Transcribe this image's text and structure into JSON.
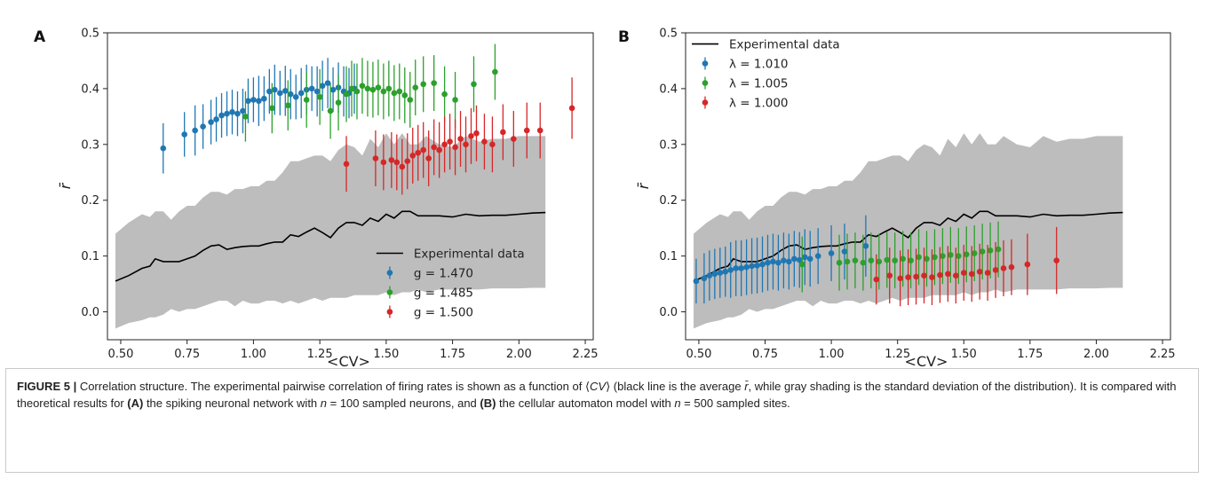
{
  "chart_data": [
    {
      "panel_label": "A",
      "type": "line+errorbar",
      "xlabel": "<CV>",
      "ylabel": "r̄",
      "xlim": [
        0.45,
        2.28
      ],
      "ylim": [
        -0.05,
        0.5
      ],
      "xticks": [
        "0.50",
        "0.75",
        "1.00",
        "1.25",
        "1.50",
        "1.75",
        "2.00",
        "2.25"
      ],
      "yticks": [
        "0.0",
        "0.1",
        "0.2",
        "0.3",
        "0.4",
        "0.5"
      ],
      "legend_position": "lower right",
      "experimental": {
        "name": "Experimental data",
        "x": [
          0.48,
          0.53,
          0.58,
          0.61,
          0.63,
          0.66,
          0.69,
          0.72,
          0.75,
          0.78,
          0.81,
          0.84,
          0.87,
          0.9,
          0.93,
          0.96,
          0.99,
          1.02,
          1.05,
          1.08,
          1.11,
          1.14,
          1.17,
          1.2,
          1.23,
          1.26,
          1.29,
          1.32,
          1.35,
          1.38,
          1.41,
          1.44,
          1.47,
          1.5,
          1.53,
          1.56,
          1.59,
          1.62,
          1.65,
          1.7,
          1.75,
          1.8,
          1.85,
          1.9,
          1.95,
          2.0,
          2.05,
          2.1
        ],
        "mean": [
          0.055,
          0.065,
          0.078,
          0.082,
          0.095,
          0.09,
          0.09,
          0.09,
          0.095,
          0.1,
          0.11,
          0.118,
          0.12,
          0.112,
          0.115,
          0.117,
          0.118,
          0.118,
          0.122,
          0.125,
          0.125,
          0.138,
          0.135,
          0.143,
          0.15,
          0.142,
          0.133,
          0.15,
          0.16,
          0.16,
          0.155,
          0.168,
          0.162,
          0.175,
          0.168,
          0.18,
          0.18,
          0.172,
          0.172,
          0.172,
          0.17,
          0.175,
          0.172,
          0.173,
          0.173,
          0.175,
          0.177,
          0.178
        ],
        "upper": [
          0.14,
          0.16,
          0.175,
          0.17,
          0.18,
          0.18,
          0.165,
          0.18,
          0.19,
          0.19,
          0.205,
          0.215,
          0.215,
          0.21,
          0.22,
          0.22,
          0.225,
          0.225,
          0.235,
          0.235,
          0.25,
          0.27,
          0.27,
          0.275,
          0.28,
          0.28,
          0.27,
          0.29,
          0.3,
          0.295,
          0.28,
          0.31,
          0.295,
          0.32,
          0.3,
          0.32,
          0.3,
          0.3,
          0.315,
          0.3,
          0.295,
          0.315,
          0.305,
          0.31,
          0.31,
          0.315,
          0.315,
          0.315
        ],
        "lower": [
          -0.03,
          -0.02,
          -0.015,
          -0.01,
          -0.01,
          -0.005,
          0.005,
          0.0,
          0.005,
          0.005,
          0.01,
          0.015,
          0.02,
          0.02,
          0.01,
          0.02,
          0.015,
          0.015,
          0.02,
          0.02,
          0.015,
          0.02,
          0.015,
          0.02,
          0.025,
          0.02,
          0.025,
          0.025,
          0.025,
          0.03,
          0.03,
          0.03,
          0.03,
          0.035,
          0.03,
          0.035,
          0.035,
          0.04,
          0.035,
          0.04,
          0.04,
          0.04,
          0.04,
          0.042,
          0.042,
          0.042,
          0.043,
          0.043
        ]
      },
      "series": [
        {
          "name": "g = 1.470",
          "color": "#1f77b4",
          "x": [
            0.66,
            0.74,
            0.78,
            0.81,
            0.84,
            0.86,
            0.88,
            0.9,
            0.92,
            0.94,
            0.96,
            0.98,
            1.0,
            1.02,
            1.04,
            1.06,
            1.08,
            1.1,
            1.12,
            1.14,
            1.16,
            1.18,
            1.2,
            1.22,
            1.24,
            1.26,
            1.28,
            1.3,
            1.32,
            1.34,
            1.36,
            1.38
          ],
          "y": [
            0.293,
            0.318,
            0.325,
            0.332,
            0.34,
            0.345,
            0.352,
            0.355,
            0.358,
            0.355,
            0.36,
            0.378,
            0.38,
            0.378,
            0.382,
            0.395,
            0.398,
            0.392,
            0.396,
            0.39,
            0.385,
            0.392,
            0.398,
            0.4,
            0.395,
            0.405,
            0.41,
            0.398,
            0.402,
            0.395,
            0.392,
            0.4
          ],
          "err": [
            0.045,
            0.04,
            0.045,
            0.04,
            0.04,
            0.04,
            0.04,
            0.04,
            0.04,
            0.04,
            0.04,
            0.04,
            0.04,
            0.045,
            0.04,
            0.04,
            0.045,
            0.04,
            0.045,
            0.045,
            0.04,
            0.045,
            0.045,
            0.04,
            0.045,
            0.045,
            0.045,
            0.04,
            0.045,
            0.045,
            0.045,
            0.045
          ]
        },
        {
          "name": "g = 1.485",
          "color": "#2ca02c",
          "x": [
            0.97,
            1.07,
            1.13,
            1.2,
            1.25,
            1.29,
            1.32,
            1.35,
            1.37,
            1.39,
            1.41,
            1.43,
            1.45,
            1.47,
            1.49,
            1.51,
            1.53,
            1.55,
            1.57,
            1.59,
            1.61,
            1.64,
            1.68,
            1.72,
            1.76,
            1.83,
            1.91
          ],
          "y": [
            0.35,
            0.365,
            0.37,
            0.38,
            0.385,
            0.36,
            0.375,
            0.39,
            0.4,
            0.395,
            0.405,
            0.4,
            0.398,
            0.402,
            0.395,
            0.4,
            0.392,
            0.395,
            0.388,
            0.38,
            0.402,
            0.408,
            0.41,
            0.39,
            0.38,
            0.408,
            0.43
          ],
          "err": [
            0.045,
            0.045,
            0.045,
            0.05,
            0.05,
            0.05,
            0.05,
            0.05,
            0.05,
            0.05,
            0.05,
            0.05,
            0.05,
            0.05,
            0.05,
            0.05,
            0.05,
            0.05,
            0.05,
            0.05,
            0.05,
            0.05,
            0.05,
            0.05,
            0.05,
            0.05,
            0.05
          ]
        },
        {
          "name": "g = 1.500",
          "color": "#d62728",
          "x": [
            1.35,
            1.46,
            1.49,
            1.52,
            1.54,
            1.56,
            1.58,
            1.6,
            1.62,
            1.64,
            1.66,
            1.68,
            1.7,
            1.72,
            1.74,
            1.76,
            1.78,
            1.8,
            1.82,
            1.84,
            1.87,
            1.9,
            1.94,
            1.98,
            2.03,
            2.08,
            2.2
          ],
          "y": [
            0.265,
            0.275,
            0.268,
            0.272,
            0.268,
            0.26,
            0.27,
            0.28,
            0.285,
            0.29,
            0.275,
            0.295,
            0.29,
            0.3,
            0.305,
            0.295,
            0.31,
            0.3,
            0.315,
            0.32,
            0.305,
            0.3,
            0.322,
            0.31,
            0.325,
            0.325,
            0.365
          ],
          "err": [
            0.05,
            0.05,
            0.05,
            0.05,
            0.05,
            0.05,
            0.05,
            0.05,
            0.05,
            0.05,
            0.05,
            0.05,
            0.05,
            0.05,
            0.05,
            0.05,
            0.05,
            0.05,
            0.05,
            0.05,
            0.05,
            0.05,
            0.05,
            0.05,
            0.05,
            0.05,
            0.055
          ]
        }
      ]
    },
    {
      "panel_label": "B",
      "type": "line+errorbar",
      "xlabel": "<CV>",
      "ylabel": "r̄",
      "xlim": [
        0.45,
        2.28
      ],
      "ylim": [
        -0.05,
        0.5
      ],
      "xticks": [
        "0.50",
        "0.75",
        "1.00",
        "1.25",
        "1.50",
        "1.75",
        "2.00",
        "2.25"
      ],
      "yticks": [
        "0.0",
        "0.1",
        "0.2",
        "0.3",
        "0.4",
        "0.5"
      ],
      "legend_position": "upper left",
      "experimental": {
        "name": "Experimental data",
        "x": [
          0.48,
          0.53,
          0.58,
          0.61,
          0.63,
          0.66,
          0.69,
          0.72,
          0.75,
          0.78,
          0.81,
          0.84,
          0.87,
          0.9,
          0.93,
          0.96,
          0.99,
          1.02,
          1.05,
          1.08,
          1.11,
          1.14,
          1.17,
          1.2,
          1.23,
          1.26,
          1.29,
          1.32,
          1.35,
          1.38,
          1.41,
          1.44,
          1.47,
          1.5,
          1.53,
          1.56,
          1.59,
          1.62,
          1.65,
          1.7,
          1.75,
          1.8,
          1.85,
          1.9,
          1.95,
          2.0,
          2.05,
          2.1
        ],
        "mean": [
          0.055,
          0.065,
          0.078,
          0.082,
          0.095,
          0.09,
          0.09,
          0.09,
          0.095,
          0.1,
          0.11,
          0.118,
          0.12,
          0.112,
          0.115,
          0.117,
          0.118,
          0.118,
          0.122,
          0.125,
          0.125,
          0.138,
          0.135,
          0.143,
          0.15,
          0.142,
          0.133,
          0.15,
          0.16,
          0.16,
          0.155,
          0.168,
          0.162,
          0.175,
          0.168,
          0.18,
          0.18,
          0.172,
          0.172,
          0.172,
          0.17,
          0.175,
          0.172,
          0.173,
          0.173,
          0.175,
          0.177,
          0.178
        ],
        "upper": [
          0.14,
          0.16,
          0.175,
          0.17,
          0.18,
          0.18,
          0.165,
          0.18,
          0.19,
          0.19,
          0.205,
          0.215,
          0.215,
          0.21,
          0.22,
          0.22,
          0.225,
          0.225,
          0.235,
          0.235,
          0.25,
          0.27,
          0.27,
          0.275,
          0.28,
          0.28,
          0.27,
          0.29,
          0.3,
          0.295,
          0.28,
          0.31,
          0.295,
          0.32,
          0.3,
          0.32,
          0.3,
          0.3,
          0.315,
          0.3,
          0.295,
          0.315,
          0.305,
          0.31,
          0.31,
          0.315,
          0.315,
          0.315
        ],
        "lower": [
          -0.03,
          -0.02,
          -0.015,
          -0.01,
          -0.01,
          -0.005,
          0.005,
          0.0,
          0.005,
          0.005,
          0.01,
          0.015,
          0.02,
          0.02,
          0.01,
          0.02,
          0.015,
          0.015,
          0.02,
          0.02,
          0.015,
          0.02,
          0.015,
          0.02,
          0.025,
          0.02,
          0.025,
          0.025,
          0.025,
          0.03,
          0.03,
          0.03,
          0.03,
          0.035,
          0.03,
          0.035,
          0.035,
          0.04,
          0.035,
          0.04,
          0.04,
          0.04,
          0.04,
          0.042,
          0.042,
          0.042,
          0.043,
          0.043
        ]
      },
      "series": [
        {
          "name": "λ = 1.010",
          "color": "#1f77b4",
          "x": [
            0.49,
            0.52,
            0.54,
            0.56,
            0.58,
            0.6,
            0.62,
            0.64,
            0.66,
            0.68,
            0.7,
            0.72,
            0.74,
            0.76,
            0.78,
            0.8,
            0.82,
            0.84,
            0.86,
            0.88,
            0.9,
            0.92,
            0.95,
            1.0,
            1.05,
            1.13
          ],
          "y": [
            0.055,
            0.06,
            0.065,
            0.068,
            0.07,
            0.072,
            0.075,
            0.078,
            0.078,
            0.08,
            0.082,
            0.083,
            0.085,
            0.088,
            0.09,
            0.088,
            0.092,
            0.09,
            0.095,
            0.093,
            0.098,
            0.095,
            0.1,
            0.105,
            0.108,
            0.118
          ],
          "err": [
            0.04,
            0.045,
            0.045,
            0.045,
            0.045,
            0.045,
            0.05,
            0.05,
            0.05,
            0.05,
            0.05,
            0.05,
            0.05,
            0.05,
            0.05,
            0.05,
            0.05,
            0.05,
            0.05,
            0.05,
            0.05,
            0.05,
            0.05,
            0.05,
            0.05,
            0.055
          ]
        },
        {
          "name": "λ = 1.005",
          "color": "#2ca02c",
          "x": [
            0.89,
            1.03,
            1.06,
            1.09,
            1.12,
            1.15,
            1.18,
            1.21,
            1.24,
            1.27,
            1.3,
            1.33,
            1.36,
            1.39,
            1.42,
            1.45,
            1.48,
            1.51,
            1.54,
            1.57,
            1.6,
            1.63
          ],
          "y": [
            0.085,
            0.088,
            0.09,
            0.092,
            0.088,
            0.092,
            0.09,
            0.093,
            0.092,
            0.095,
            0.092,
            0.098,
            0.095,
            0.098,
            0.1,
            0.102,
            0.1,
            0.103,
            0.105,
            0.108,
            0.11,
            0.112
          ],
          "err": [
            0.05,
            0.05,
            0.05,
            0.05,
            0.05,
            0.05,
            0.05,
            0.05,
            0.05,
            0.05,
            0.05,
            0.05,
            0.05,
            0.05,
            0.05,
            0.05,
            0.05,
            0.05,
            0.05,
            0.05,
            0.05,
            0.05
          ]
        },
        {
          "name": "λ = 1.000",
          "color": "#d62728",
          "x": [
            1.17,
            1.22,
            1.26,
            1.29,
            1.32,
            1.35,
            1.38,
            1.41,
            1.44,
            1.47,
            1.5,
            1.53,
            1.56,
            1.59,
            1.62,
            1.65,
            1.68,
            1.74,
            1.85
          ],
          "y": [
            0.058,
            0.065,
            0.06,
            0.062,
            0.063,
            0.065,
            0.062,
            0.066,
            0.068,
            0.065,
            0.07,
            0.068,
            0.072,
            0.07,
            0.075,
            0.078,
            0.08,
            0.085,
            0.092
          ],
          "err": [
            0.045,
            0.05,
            0.05,
            0.05,
            0.05,
            0.05,
            0.05,
            0.05,
            0.05,
            0.05,
            0.05,
            0.05,
            0.05,
            0.05,
            0.05,
            0.05,
            0.05,
            0.055,
            0.06
          ]
        }
      ]
    }
  ],
  "caption": {
    "label": "FIGURE 5 |",
    "text_1": " Correlation structure. The experimental pairwise correlation of firing rates is shown as a function of ⟨",
    "cv": "CV",
    "text_2": "⟩ (black line is the average ",
    "rbar": "r̄",
    "text_3": ", while gray shading is the standard deviation of the distribution). It is compared with theoretical results for ",
    "a_ref": "(A)",
    "text_4": " the spiking neuronal network with ",
    "n1": "n",
    "text_5": " = 100 sampled neurons, and ",
    "b_ref": "(B)",
    "text_6": " the cellular automaton model with ",
    "n2": "n",
    "text_7": " = 500 sampled sites."
  }
}
